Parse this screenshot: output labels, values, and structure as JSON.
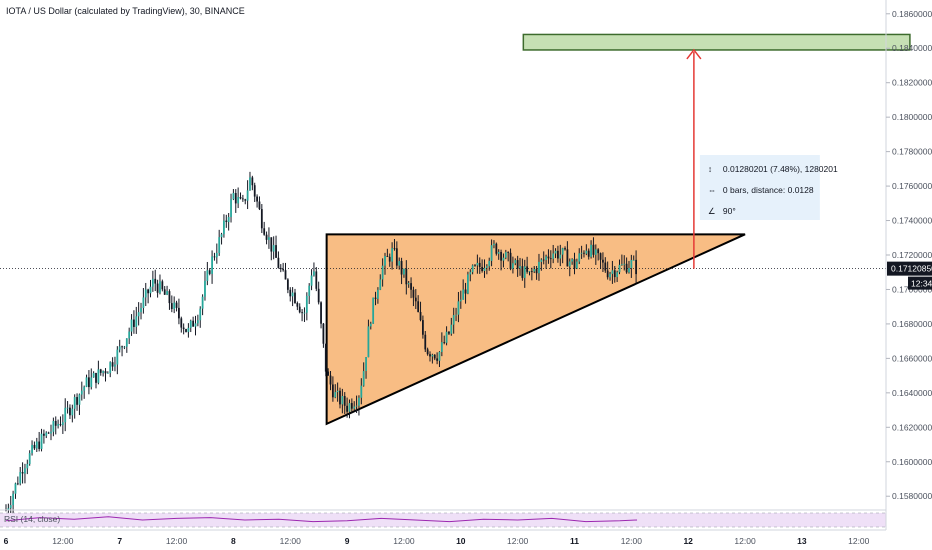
{
  "chart_data": {
    "type": "candlestick",
    "title": "IOTA / US Dollar (calculated by TradingView), 30, BINANCE",
    "xaxis": {
      "ticks": [
        "6",
        "12:00",
        "7",
        "12:00",
        "8",
        "12:00",
        "9",
        "12:00",
        "10",
        "12:00",
        "11",
        "12:00",
        "12",
        "12:00",
        "13",
        "12:00"
      ],
      "range": [
        "6",
        "13 12:00"
      ]
    },
    "yaxis": {
      "ticks": [
        "0.15800000",
        "0.16000000",
        "0.16200000",
        "0.16400000",
        "0.16600000",
        "0.16800000",
        "0.17000000",
        "0.17200000",
        "0.17400000",
        "0.17600000",
        "0.17800000",
        "0.18000000",
        "0.18200000",
        "0.18400000",
        "0.18600000"
      ],
      "range": [
        0.1572,
        0.1868
      ],
      "position": "right",
      "grid": false
    },
    "price_line": {
      "value": 0.1712085,
      "label": "0.17120850",
      "time_label": "12:34"
    },
    "price_path": [
      [
        0.0,
        0.1572
      ],
      [
        0.05,
        0.158
      ],
      [
        0.15,
        0.1598
      ],
      [
        0.3,
        0.1612
      ],
      [
        0.5,
        0.1625
      ],
      [
        0.7,
        0.1645
      ],
      [
        0.9,
        0.1655
      ],
      [
        1.0,
        0.1665
      ],
      [
        1.15,
        0.1685
      ],
      [
        1.3,
        0.1705
      ],
      [
        1.45,
        0.1692
      ],
      [
        1.6,
        0.1675
      ],
      [
        1.7,
        0.1688
      ],
      [
        1.8,
        0.1715
      ],
      [
        1.9,
        0.1732
      ],
      [
        2.0,
        0.1755
      ],
      [
        2.08,
        0.1748
      ],
      [
        2.15,
        0.1765
      ],
      [
        2.25,
        0.174
      ],
      [
        2.35,
        0.1722
      ],
      [
        2.45,
        0.1705
      ],
      [
        2.55,
        0.1695
      ],
      [
        2.62,
        0.1685
      ],
      [
        2.7,
        0.1715
      ],
      [
        2.75,
        0.169
      ],
      [
        2.82,
        0.165
      ],
      [
        2.9,
        0.1638
      ],
      [
        3.0,
        0.1632
      ],
      [
        3.1,
        0.1638
      ],
      [
        3.15,
        0.1655
      ],
      [
        3.2,
        0.1682
      ],
      [
        3.3,
        0.1712
      ],
      [
        3.4,
        0.1722
      ],
      [
        3.5,
        0.1708
      ],
      [
        3.6,
        0.1692
      ],
      [
        3.7,
        0.1665
      ],
      [
        3.8,
        0.1662
      ],
      [
        3.9,
        0.1675
      ],
      [
        4.0,
        0.1695
      ],
      [
        4.1,
        0.171
      ],
      [
        4.2,
        0.1715
      ],
      [
        4.3,
        0.1725
      ],
      [
        4.4,
        0.1718
      ],
      [
        4.5,
        0.1712
      ],
      [
        4.6,
        0.1708
      ],
      [
        4.7,
        0.1715
      ],
      [
        4.8,
        0.1722
      ],
      [
        4.9,
        0.172
      ],
      [
        5.0,
        0.1714
      ],
      [
        5.1,
        0.1725
      ],
      [
        5.2,
        0.1718
      ],
      [
        5.3,
        0.171
      ],
      [
        5.4,
        0.1713
      ],
      [
        5.5,
        0.1715
      ],
      [
        5.55,
        0.1712
      ]
    ],
    "triangle": {
      "points": [
        [
          2.82,
          0.1732
        ],
        [
          2.82,
          0.1622
        ],
        [
          6.5,
          0.1732
        ]
      ],
      "fill": "#f7b26e",
      "stroke": "#000000"
    },
    "target_zone": {
      "x": [
        4.55,
        7.95
      ],
      "y": [
        0.1839,
        0.1848
      ],
      "fill": "#c6e0b4",
      "stroke": "#3d6b2d"
    },
    "arrow": {
      "x": 6.05,
      "y_from": 0.1712,
      "y_to": 0.1839,
      "color": "#e53935"
    },
    "measure_box": {
      "lines": [
        "0.01280201 (7.48%), 1280201",
        "0 bars, distance: 0.0128",
        "90°"
      ],
      "fill": "#e3f0fb"
    },
    "rsi": {
      "label": "RSI (14, close)",
      "path": [
        [
          0.0,
          0.55
        ],
        [
          0.3,
          0.35
        ],
        [
          0.6,
          0.45
        ],
        [
          0.9,
          0.3
        ],
        [
          1.2,
          0.5
        ],
        [
          1.5,
          0.4
        ],
        [
          1.8,
          0.35
        ],
        [
          2.1,
          0.5
        ],
        [
          2.4,
          0.45
        ],
        [
          2.7,
          0.6
        ],
        [
          3.0,
          0.55
        ],
        [
          3.3,
          0.4
        ],
        [
          3.6,
          0.5
        ],
        [
          3.9,
          0.6
        ],
        [
          4.2,
          0.45
        ],
        [
          4.5,
          0.5
        ],
        [
          4.8,
          0.4
        ],
        [
          5.1,
          0.6
        ],
        [
          5.4,
          0.55
        ],
        [
          5.55,
          0.5
        ]
      ],
      "line_color": "#9c27b0",
      "band_fill": "#efe0f7"
    }
  }
}
